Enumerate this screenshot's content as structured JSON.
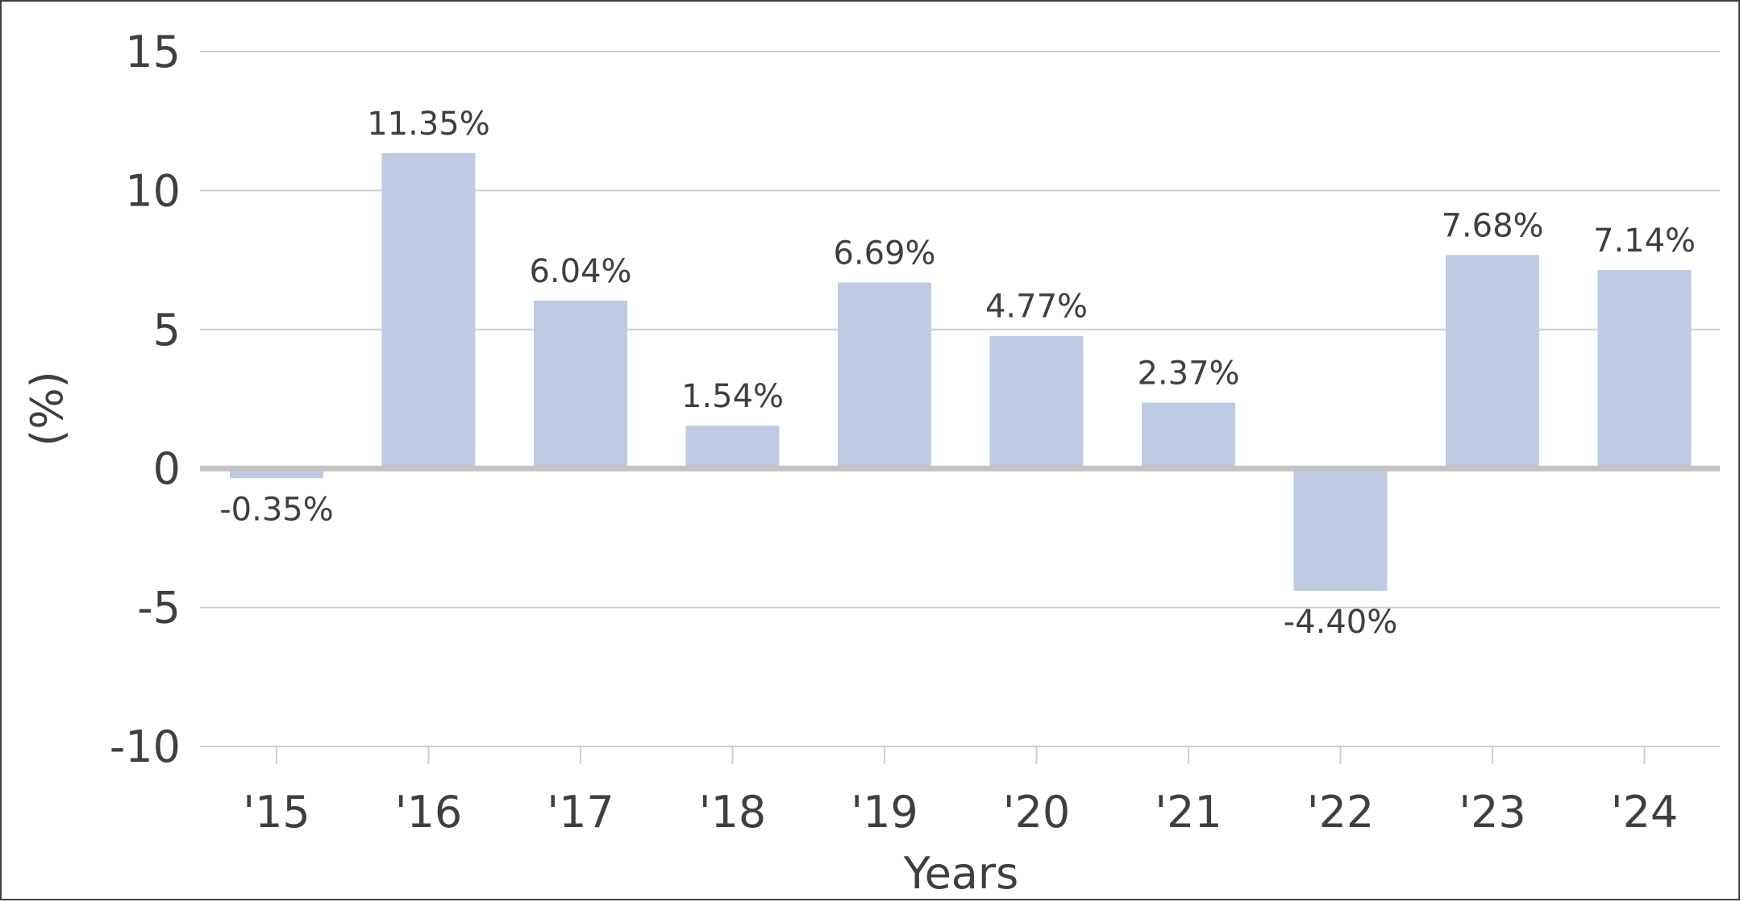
{
  "chart_data": {
    "type": "bar",
    "title": "",
    "xlabel": "Years",
    "ylabel": "(%)",
    "categories": [
      "'15",
      "'16",
      "'17",
      "'18",
      "'19",
      "'20",
      "'21",
      "'22",
      "'23",
      "'24"
    ],
    "values": [
      -0.35,
      11.35,
      6.04,
      1.54,
      6.69,
      4.77,
      2.37,
      -4.4,
      7.68,
      7.14
    ],
    "data_labels": [
      "-0.35%",
      "11.35%",
      "6.04%",
      "1.54%",
      "6.69%",
      "4.77%",
      "2.37%",
      "-4.40%",
      "7.68%",
      "7.14%"
    ],
    "yticks": [
      15,
      10,
      5,
      0,
      -5,
      -10
    ],
    "ylim": [
      -10,
      15
    ],
    "grid": true,
    "legend": "none",
    "colors": {
      "bar": "#bfcbe3",
      "grid": "#cfcfcf",
      "zero_line": "#c4c4c4",
      "text": "#3f3f3f",
      "border": "#404040"
    }
  }
}
